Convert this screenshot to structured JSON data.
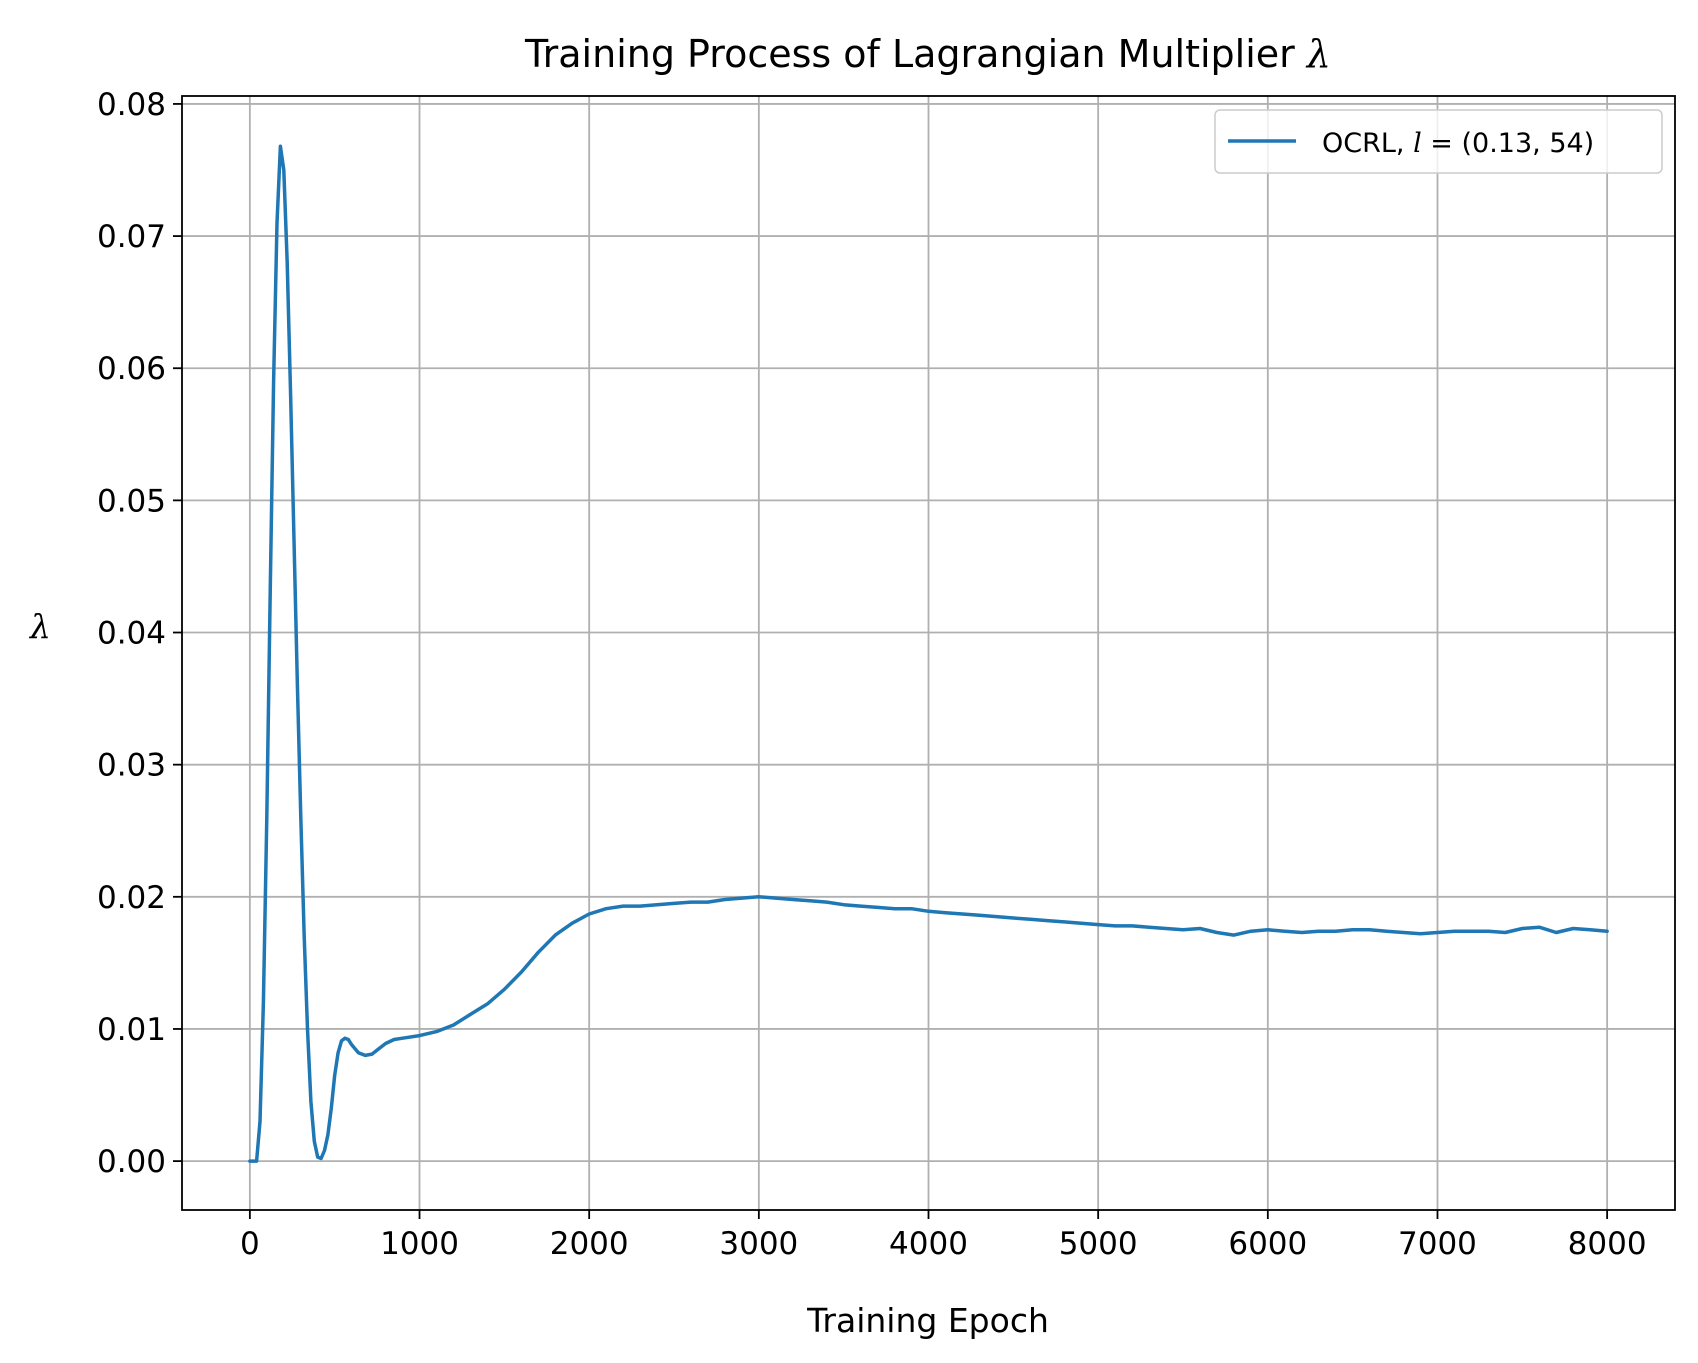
{
  "chart_data": {
    "type": "line",
    "title": "Training Process of Lagrangian Multiplier",
    "title_symbol": "λ",
    "xlabel": "Training Epoch",
    "ylabel": "λ",
    "xlim": [
      -400,
      8400
    ],
    "ylim": [
      -0.0037,
      0.0806
    ],
    "xticks": [
      0,
      1000,
      2000,
      3000,
      4000,
      5000,
      6000,
      7000,
      8000
    ],
    "xtick_labels": [
      "0",
      "1000",
      "2000",
      "3000",
      "4000",
      "5000",
      "6000",
      "7000",
      "8000"
    ],
    "yticks": [
      0.0,
      0.01,
      0.02,
      0.03,
      0.04,
      0.05,
      0.06,
      0.07,
      0.08
    ],
    "ytick_labels": [
      "0.00",
      "0.01",
      "0.02",
      "0.03",
      "0.04",
      "0.05",
      "0.06",
      "0.07",
      "0.08"
    ],
    "grid": true,
    "legend_position": "top-right",
    "series": [
      {
        "name": "OCRL, l = (0.13, 54)",
        "legend_prefix": "OCRL, ",
        "legend_var": "l",
        "legend_rest": " = (0.13, 54)",
        "color": "#1f77b4",
        "x": [
          0,
          40,
          60,
          80,
          100,
          120,
          140,
          160,
          180,
          200,
          220,
          240,
          260,
          280,
          300,
          320,
          340,
          360,
          380,
          400,
          420,
          440,
          460,
          480,
          500,
          520,
          540,
          560,
          580,
          600,
          640,
          680,
          720,
          760,
          800,
          850,
          900,
          1000,
          1100,
          1200,
          1300,
          1400,
          1500,
          1600,
          1700,
          1800,
          1900,
          2000,
          2100,
          2200,
          2300,
          2400,
          2500,
          2600,
          2700,
          2800,
          2900,
          3000,
          3100,
          3200,
          3300,
          3400,
          3500,
          3600,
          3700,
          3800,
          3900,
          4000,
          4100,
          4200,
          4300,
          4400,
          4500,
          4600,
          4700,
          4800,
          4900,
          5000,
          5100,
          5200,
          5300,
          5400,
          5500,
          5600,
          5700,
          5800,
          5900,
          6000,
          6100,
          6200,
          6300,
          6400,
          6500,
          6600,
          6700,
          6800,
          6900,
          7000,
          7100,
          7200,
          7300,
          7400,
          7500,
          7600,
          7700,
          7800,
          7900,
          8000
        ],
        "y": [
          0.0,
          0.0,
          0.003,
          0.012,
          0.026,
          0.043,
          0.059,
          0.071,
          0.0768,
          0.075,
          0.068,
          0.058,
          0.047,
          0.036,
          0.026,
          0.017,
          0.01,
          0.0045,
          0.0015,
          0.0003,
          0.0002,
          0.0008,
          0.002,
          0.004,
          0.0065,
          0.0082,
          0.0091,
          0.0093,
          0.0092,
          0.0088,
          0.0082,
          0.008,
          0.0081,
          0.0085,
          0.0089,
          0.0092,
          0.0093,
          0.0095,
          0.0098,
          0.0103,
          0.0111,
          0.0119,
          0.013,
          0.0143,
          0.0158,
          0.0171,
          0.018,
          0.0187,
          0.0191,
          0.0193,
          0.0193,
          0.0194,
          0.0195,
          0.0196,
          0.0196,
          0.0198,
          0.0199,
          0.02,
          0.0199,
          0.0198,
          0.0197,
          0.0196,
          0.0194,
          0.0193,
          0.0192,
          0.0191,
          0.0191,
          0.0189,
          0.0188,
          0.0187,
          0.0186,
          0.0185,
          0.0184,
          0.0183,
          0.0182,
          0.0181,
          0.018,
          0.0179,
          0.0178,
          0.0178,
          0.0177,
          0.0176,
          0.0175,
          0.0176,
          0.0173,
          0.0171,
          0.0174,
          0.0175,
          0.0174,
          0.0173,
          0.0174,
          0.0174,
          0.0175,
          0.0175,
          0.0174,
          0.0173,
          0.0172,
          0.0173,
          0.0174,
          0.0174,
          0.0174,
          0.0173,
          0.0176,
          0.0177,
          0.0173,
          0.0176,
          0.0175,
          0.0174
        ]
      }
    ]
  }
}
